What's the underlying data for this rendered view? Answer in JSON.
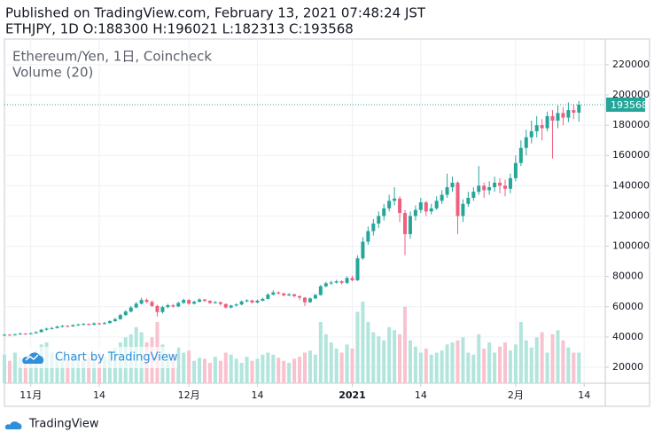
{
  "chart_data": {
    "type": "candlestick",
    "published": "Published on TradingView.com, February 13, 2021 07:48:24 JST",
    "title": "ETHJPY, 1D O:188300 H:196021 L:182313 C:193568",
    "legend": [
      "Ethereum/Yen, 1日, Coincheck",
      "Volume (20)"
    ],
    "watermark": "Chart by TradingView",
    "footer": "TradingView",
    "up_color": "#26a69a",
    "down_color": "#ef5f7f",
    "up_volume_color": "#b2e5dc",
    "down_volume_color": "#f9c2cf",
    "grid": true,
    "ylim": [
      9450,
      236950
    ],
    "yticks": [
      20000,
      40000,
      60000,
      80000,
      100000,
      120000,
      140000,
      160000,
      180000,
      200000,
      220000
    ],
    "xlim": [
      0,
      114
    ],
    "xticks": [
      {
        "value": 5,
        "label": "11月"
      },
      {
        "value": 18,
        "label": "14"
      },
      {
        "value": 35,
        "label": "12月"
      },
      {
        "value": 48,
        "label": "14"
      },
      {
        "value": 66,
        "label": "2021"
      },
      {
        "value": 79,
        "label": "14"
      },
      {
        "value": 97,
        "label": "2月"
      },
      {
        "value": 110,
        "label": "14"
      }
    ],
    "open": [
      41000,
      41500,
      41200,
      41800,
      42300,
      41900,
      42500,
      43200,
      44800,
      45500,
      45900,
      46800,
      47300,
      47000,
      47800,
      48200,
      48600,
      48100,
      49000,
      48700,
      49200,
      50500,
      51800,
      54500,
      56800,
      59500,
      62000,
      64500,
      63200,
      60500,
      56500,
      59800,
      61000,
      60200,
      62500,
      64500,
      62000,
      63300,
      64800,
      63900,
      62500,
      63000,
      61800,
      59500,
      60800,
      61500,
      63500,
      64200,
      62800,
      64000,
      65200,
      68000,
      69500,
      68800,
      67500,
      68200,
      67000,
      66000,
      63000,
      65500,
      67800,
      73500,
      75500,
      76000,
      76800,
      75800,
      79000,
      77500,
      92000,
      103000,
      110000,
      115000,
      120000,
      125000,
      130000,
      131500,
      122000,
      108000,
      120000,
      124000,
      129000,
      123000,
      125000,
      130000,
      134000,
      139000,
      142000,
      120000,
      128000,
      132000,
      136000,
      140000,
      137000,
      139000,
      142000,
      140000,
      138000,
      145000,
      155000,
      165000,
      172000,
      176000,
      180000,
      178000,
      186000,
      183000,
      188000,
      185000,
      190000,
      188300
    ],
    "high": [
      42000,
      41900,
      42200,
      42800,
      42600,
      43000,
      43800,
      45400,
      46200,
      46600,
      47500,
      48000,
      47900,
      48400,
      48900,
      49300,
      49000,
      49600,
      49500,
      50000,
      51200,
      52600,
      55300,
      57800,
      60500,
      63200,
      66000,
      65500,
      64000,
      61200,
      60500,
      62000,
      61800,
      63300,
      65300,
      65000,
      64000,
      65500,
      65200,
      64300,
      63800,
      63500,
      62200,
      61300,
      62200,
      64200,
      65000,
      64600,
      64800,
      66000,
      69000,
      70800,
      70200,
      69300,
      69000,
      68600,
      67500,
      66500,
      66200,
      68500,
      74500,
      76500,
      77200,
      77800,
      77500,
      80000,
      80500,
      94000,
      106000,
      113000,
      118000,
      123000,
      128000,
      134000,
      139000,
      133000,
      124000,
      123000,
      127000,
      132000,
      130000,
      128000,
      133000,
      137000,
      148000,
      146000,
      143000,
      131000,
      136000,
      139000,
      153000,
      142000,
      143000,
      146000,
      145000,
      144000,
      148000,
      160000,
      170000,
      177000,
      183000,
      186000,
      184000,
      189000,
      190000,
      193000,
      192000,
      195000,
      194000,
      196021
    ],
    "low": [
      40500,
      40800,
      40900,
      41500,
      41400,
      41600,
      42200,
      43000,
      44300,
      45000,
      45600,
      46300,
      46400,
      46700,
      47400,
      47800,
      47500,
      47800,
      48000,
      48300,
      48900,
      50000,
      51400,
      54000,
      56200,
      59000,
      61500,
      62500,
      59800,
      53500,
      55500,
      59000,
      59300,
      59800,
      62000,
      61300,
      61500,
      62800,
      63200,
      61800,
      62000,
      60800,
      58800,
      58900,
      60200,
      61000,
      63000,
      62200,
      62300,
      63600,
      64800,
      67500,
      68000,
      66800,
      67000,
      66200,
      64500,
      60500,
      62500,
      65000,
      67300,
      72800,
      74500,
      75300,
      74800,
      75000,
      76800,
      77000,
      91000,
      101000,
      107000,
      112000,
      117000,
      123000,
      127000,
      116000,
      94000,
      105000,
      117000,
      122000,
      120000,
      121000,
      124000,
      128000,
      132000,
      136000,
      108000,
      116000,
      126000,
      130000,
      134000,
      132000,
      134000,
      136000,
      135000,
      133000,
      135000,
      143000,
      153000,
      160000,
      168000,
      172000,
      170000,
      176000,
      158000,
      178000,
      180000,
      182000,
      184000,
      182313
    ],
    "close": [
      41500,
      41200,
      41800,
      42300,
      41900,
      42500,
      43200,
      44800,
      45500,
      45900,
      46800,
      47300,
      47000,
      47800,
      48200,
      48600,
      48100,
      49000,
      48700,
      49200,
      50500,
      51800,
      54500,
      56800,
      59500,
      62000,
      64500,
      63200,
      60500,
      56500,
      59800,
      61000,
      60200,
      62500,
      64500,
      62000,
      63300,
      64800,
      63900,
      62500,
      63000,
      61800,
      59500,
      60800,
      61500,
      63500,
      64200,
      62800,
      64000,
      65200,
      68000,
      69500,
      68800,
      67500,
      68200,
      67000,
      66000,
      63000,
      65500,
      67800,
      73500,
      75500,
      76000,
      76800,
      75800,
      79000,
      77500,
      92000,
      103000,
      110000,
      115000,
      120000,
      125000,
      130000,
      131500,
      122000,
      108000,
      120000,
      124000,
      129000,
      123000,
      125000,
      130000,
      134000,
      139000,
      142000,
      120000,
      128000,
      132000,
      136000,
      140000,
      137000,
      139000,
      142000,
      140000,
      138000,
      145000,
      155000,
      165000,
      172000,
      176000,
      180000,
      178000,
      186000,
      183000,
      188000,
      185000,
      190000,
      188300,
      193568
    ],
    "volume": [
      28,
      22,
      30,
      26,
      24,
      25,
      32,
      38,
      40,
      30,
      28,
      26,
      24,
      30,
      27,
      22,
      25,
      28,
      30,
      26,
      32,
      35,
      40,
      45,
      48,
      55,
      50,
      40,
      45,
      60,
      38,
      30,
      28,
      35,
      30,
      32,
      22,
      25,
      24,
      20,
      26,
      22,
      30,
      28,
      24,
      20,
      26,
      22,
      24,
      28,
      30,
      28,
      25,
      22,
      20,
      24,
      26,
      30,
      32,
      28,
      60,
      48,
      40,
      34,
      30,
      38,
      34,
      70,
      80,
      60,
      50,
      46,
      42,
      55,
      52,
      48,
      75,
      42,
      36,
      30,
      34,
      28,
      30,
      32,
      38,
      40,
      42,
      45,
      30,
      28,
      48,
      34,
      40,
      30,
      36,
      40,
      32,
      38,
      60,
      42,
      35,
      45,
      50,
      30,
      48,
      52,
      42,
      35,
      30,
      30
    ]
  }
}
